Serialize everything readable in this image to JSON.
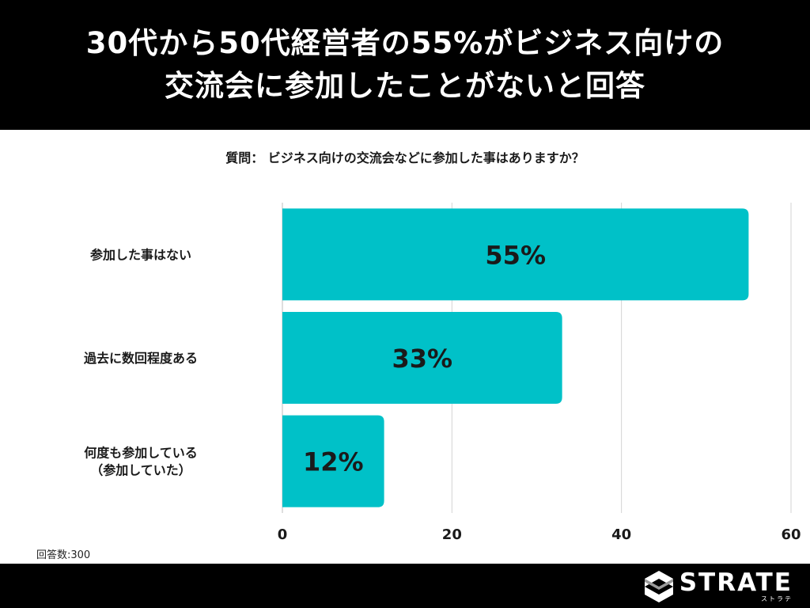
{
  "header": {
    "title_line1": "30代から50代経営者の55%がビジネス向けの",
    "title_line2": "交流会に参加したことがないと回答"
  },
  "question": "質問： ビジネス向けの交流会などに参加した事はありますか？",
  "note": "回答数:300",
  "logo": {
    "word": "STRATE",
    "sub": "ストラテ"
  },
  "colors": {
    "bar": "#00c1c8",
    "header_bg": "#000000",
    "grid": "#d3d3d3"
  },
  "chart_data": {
    "type": "bar",
    "orientation": "horizontal",
    "categories": [
      [
        "参加した事はない"
      ],
      [
        "過去に数回程度ある"
      ],
      [
        "何度も参加している",
        "（参加していた）"
      ]
    ],
    "values": [
      55,
      33,
      12
    ],
    "value_labels": [
      "55%",
      "33%",
      "12%"
    ],
    "x_ticks": [
      0,
      20,
      40,
      60
    ],
    "xlim": [
      0,
      60
    ],
    "grid": true
  }
}
